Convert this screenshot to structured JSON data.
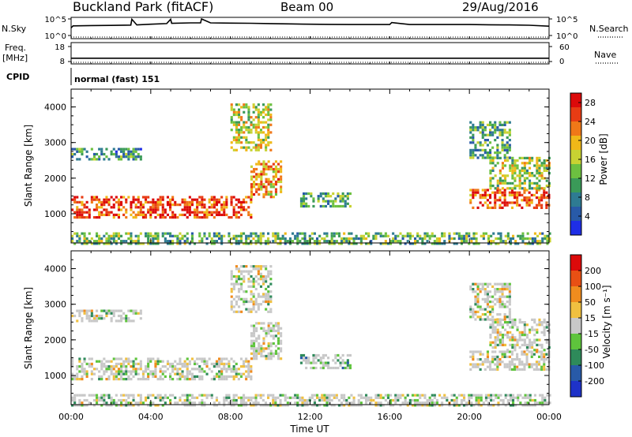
{
  "header": {
    "station": "Buckland Park (fitACF)",
    "beam": "Beam 00",
    "date": "29/Aug/2016"
  },
  "chart_data": [
    {
      "type": "line",
      "panel": "noise",
      "left_label": "N.Sky",
      "right_label": "N.Search",
      "left_ticks": [
        "10^5",
        "10^0"
      ],
      "right_ticks": [
        "10^5",
        "10^0"
      ],
      "series": [
        {
          "x": [
            0,
            0.1,
            1,
            2,
            3,
            3.05,
            3.3,
            4,
            4.8,
            5,
            5.05,
            6,
            6.5,
            6.55,
            7,
            8,
            9,
            10,
            11,
            12,
            13,
            14,
            15,
            16,
            16.1,
            17,
            18,
            19,
            20,
            21,
            22,
            23,
            24
          ],
          "y": [
            2.3,
            2.9,
            3.0,
            3.05,
            3.15,
            4.9,
            3.2,
            3.4,
            3.6,
            4.9,
            3.7,
            3.8,
            3.8,
            5.0,
            3.8,
            3.75,
            3.7,
            3.6,
            3.5,
            3.4,
            3.35,
            3.3,
            3.3,
            3.3,
            3.9,
            3.3,
            3.3,
            3.3,
            3.3,
            3.25,
            3.2,
            3.1,
            2.8
          ]
        }
      ]
    },
    {
      "type": "line",
      "panel": "frequency",
      "left_label": "Freq.",
      "left_unit": "[MHz]",
      "right_label": "Nave",
      "left_ticks": [
        "18",
        "8"
      ],
      "right_ticks": [
        "60",
        "0"
      ],
      "series": [
        {
          "x": [
            0,
            24
          ],
          "y": [
            10.2,
            10.2
          ]
        }
      ]
    },
    {
      "type": "table",
      "panel": "cpid",
      "label": "CPID",
      "value": "normal (fast) 151"
    },
    {
      "type": "heatmap",
      "panel": "power",
      "ylabel": "Slant Range [km]",
      "yticks": [
        "1000",
        "2000",
        "3000",
        "4000"
      ],
      "ylim": [
        180,
        4500
      ],
      "xlim": [
        0,
        24
      ],
      "colorbar": {
        "label": "Power [dB]",
        "ticks": [
          "4",
          "8",
          "12",
          "16",
          "20",
          "24",
          "28"
        ],
        "colors": [
          "#1e2ee6",
          "#285aa8",
          "#2e7b92",
          "#3a9a58",
          "#6cc040",
          "#c8d232",
          "#f0b818",
          "#f07818",
          "#e83c14",
          "#dc0a0a"
        ]
      },
      "regions": [
        {
          "x": [
            0,
            9
          ],
          "r": [
            900,
            1500
          ],
          "level": 0.85
        },
        {
          "x": [
            9,
            10.5
          ],
          "r": [
            1500,
            2500
          ],
          "level": 0.7
        },
        {
          "x": [
            0,
            3.5
          ],
          "r": [
            2550,
            2850
          ],
          "level": 0.3
        },
        {
          "x": [
            8,
            10
          ],
          "r": [
            2800,
            4100
          ],
          "level": 0.55
        },
        {
          "x": [
            11.5,
            14
          ],
          "r": [
            1200,
            1600
          ],
          "level": 0.35
        },
        {
          "x": [
            20,
            24
          ],
          "r": [
            1200,
            1700
          ],
          "level": 0.8
        },
        {
          "x": [
            21,
            24
          ],
          "r": [
            1700,
            2600
          ],
          "level": 0.5
        },
        {
          "x": [
            20,
            22
          ],
          "r": [
            2600,
            3600
          ],
          "level": 0.35
        },
        {
          "x": [
            0,
            24
          ],
          "r": [
            180,
            480
          ],
          "level": 0.4
        }
      ]
    },
    {
      "type": "heatmap",
      "panel": "velocity",
      "ylabel": "Slant Range [km]",
      "yticks": [
        "1000",
        "2000",
        "3000",
        "4000"
      ],
      "ylim": [
        180,
        4500
      ],
      "xlim": [
        0,
        24
      ],
      "xticks": [
        "00:00",
        "04:00",
        "08:00",
        "12:00",
        "16:00",
        "20:00",
        "00:00"
      ],
      "xlabel": "Time UT",
      "colorbar": {
        "label": "Velocity [m s⁻¹]",
        "ticks": [
          "200",
          "100",
          "50",
          "15",
          "-15",
          "-50",
          "-100",
          "-200"
        ],
        "colors": [
          "#1e32c8",
          "#285aa8",
          "#2e8a5a",
          "#5ec43c",
          "#c8c8c8",
          "#f0c040",
          "#f08c1e",
          "#e85014",
          "#dc0a0a"
        ]
      },
      "regions": [
        {
          "x": [
            0,
            9
          ],
          "r": [
            900,
            1500
          ],
          "level": 0.5
        },
        {
          "x": [
            9,
            10.5
          ],
          "r": [
            1500,
            2500
          ],
          "level": 0.5
        },
        {
          "x": [
            0,
            3.5
          ],
          "r": [
            2550,
            2850
          ],
          "level": 0.5
        },
        {
          "x": [
            8,
            10
          ],
          "r": [
            2800,
            4100
          ],
          "level": 0.5
        },
        {
          "x": [
            11.5,
            14
          ],
          "r": [
            1200,
            1600
          ],
          "level": 0.35
        },
        {
          "x": [
            20,
            24
          ],
          "r": [
            1200,
            1700
          ],
          "level": 0.5
        },
        {
          "x": [
            21,
            24
          ],
          "r": [
            1700,
            2600
          ],
          "level": 0.5
        },
        {
          "x": [
            20,
            22
          ],
          "r": [
            2600,
            3600
          ],
          "level": 0.5
        },
        {
          "x": [
            0,
            24
          ],
          "r": [
            180,
            480
          ],
          "level": 0.45
        }
      ]
    }
  ]
}
